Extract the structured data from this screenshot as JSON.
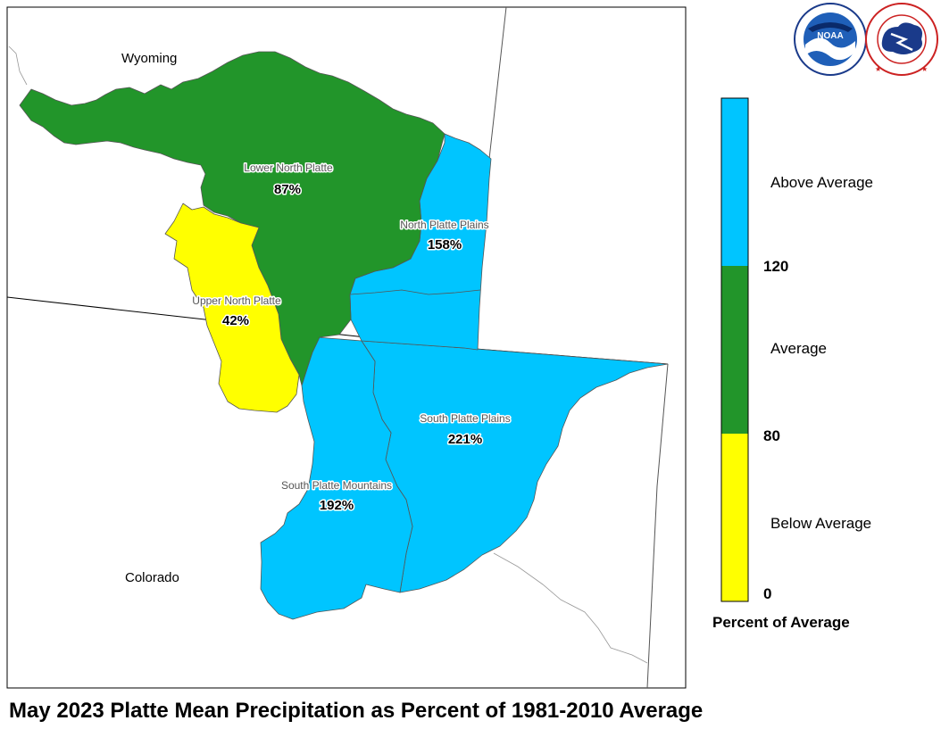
{
  "title": "May 2023 Platte Mean Precipitation as Percent of 1981-2010 Average",
  "states": [
    {
      "name": "Wyoming"
    },
    {
      "name": "Colorado"
    }
  ],
  "basins": [
    {
      "name": "Lower North Platte",
      "percent": "87%",
      "category": "Average"
    },
    {
      "name": "North Platte Plains",
      "percent": "158%",
      "category": "Above Average"
    },
    {
      "name": "Upper North Platte",
      "percent": "42%",
      "category": "Below Average"
    },
    {
      "name": "South Platte Plains",
      "percent": "221%",
      "category": "Above Average"
    },
    {
      "name": "South Platte Mountains",
      "percent": "192%",
      "category": "Above Average"
    }
  ],
  "legend": {
    "title": "Percent of Average",
    "categories": [
      {
        "label": "Above Average",
        "color": "#00c5ff"
      },
      {
        "label": "Average",
        "color": "#22952a"
      },
      {
        "label": "Below Average",
        "color": "#ffff00"
      }
    ],
    "ticks": [
      "120",
      "80",
      "0"
    ]
  },
  "colors": {
    "above": "#00c5ff",
    "average": "#22952a",
    "below": "#ffff00"
  },
  "logos": {
    "noaa_text": "NOAA",
    "noaa_ring": "NATIONAL OCEANIC AND ATMOSPHERIC ADMINISTRATION · U.S. DEPARTMENT OF COMMERCE",
    "nws_ring": "NATIONAL WEATHER SERVICE"
  }
}
